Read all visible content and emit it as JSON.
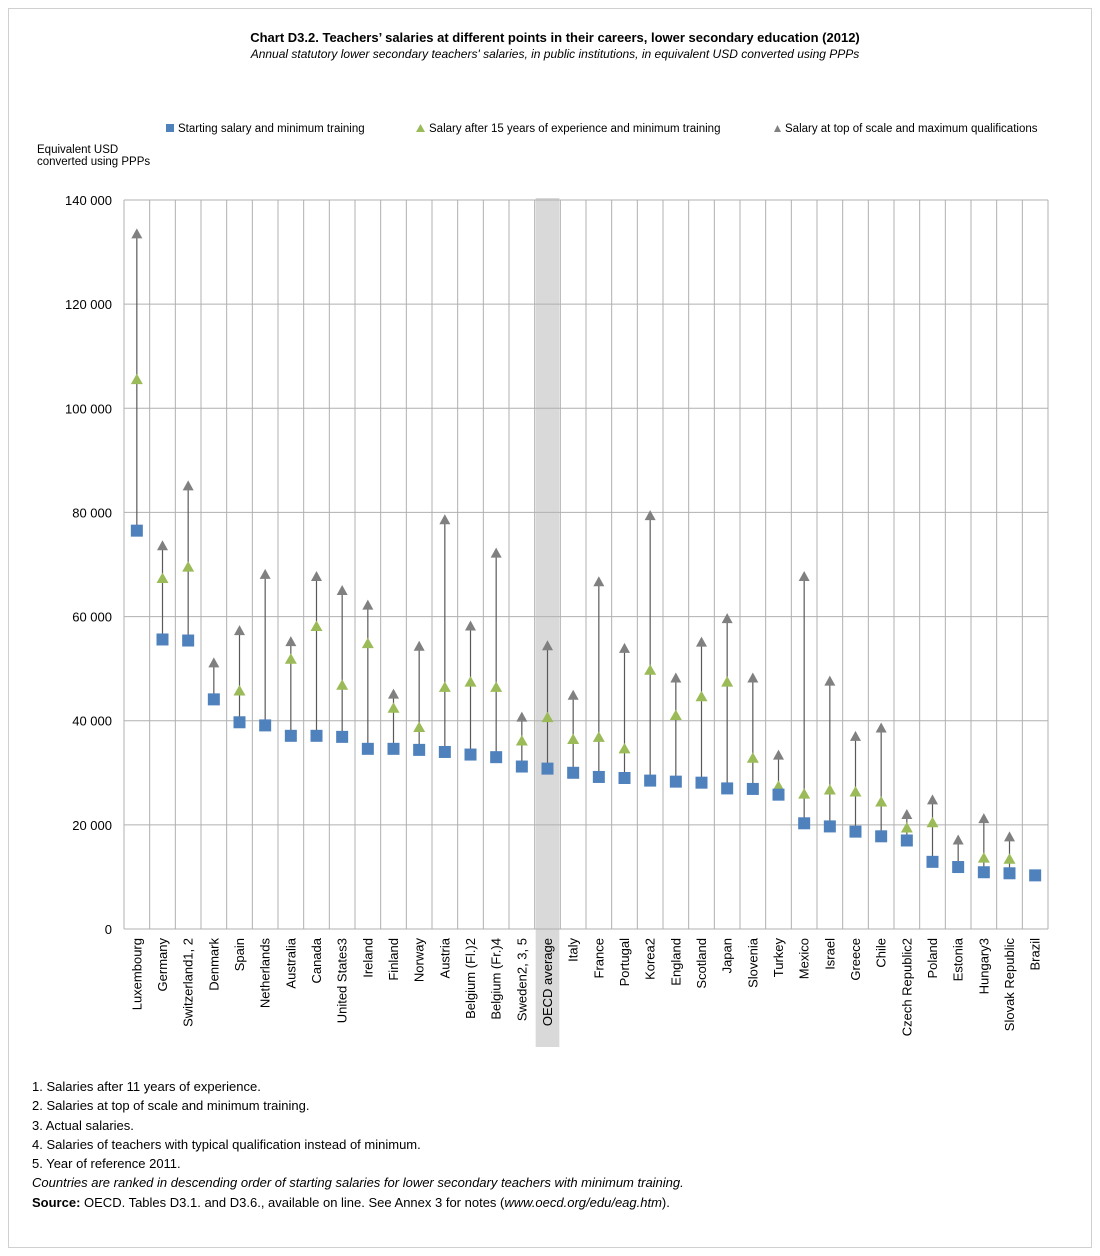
{
  "title": "Chart D3.2. Teachers’ salaries  at different points  in their careers, lower secondary  education (2012)",
  "subtitle": "Annual statutory lower secondary teachers' salaries, in public institutions, in equivalent USD converted using PPPs",
  "colors": {
    "starting": "#4f81bd",
    "after15": "#9bbb59",
    "top": "#808080",
    "highlight": "#d9d9d9",
    "grid": "#b0b0b0"
  },
  "legend": [
    {
      "key": "starting",
      "label": "Starting salary and minimum training",
      "marker": "square"
    },
    {
      "key": "after15",
      "label": "Salary after 15 years of experience and minimum training",
      "marker": "triangle"
    },
    {
      "key": "top",
      "label": "Salary at top of scale and maximum qualifications",
      "marker": "triangle-small"
    }
  ],
  "chart_data": {
    "type": "scatter",
    "ylabel": "Equivalent USD converted using PPPs",
    "ylim": [
      0,
      140000
    ],
    "yticks": [
      0,
      20000,
      40000,
      60000,
      80000,
      100000,
      120000,
      140000
    ],
    "ytick_labels": [
      "0",
      "20 000",
      "40 000",
      "60 000",
      "80 000",
      "100 000",
      "120 000",
      "140 000"
    ],
    "grid": true,
    "legend_position": "top",
    "highlight_category": "OECD average",
    "categories": [
      "Luxembourg",
      "Germany",
      "Switzerland1, 2",
      "Denmark",
      "Spain",
      "Netherlands",
      "Australia",
      "Canada",
      "United States3",
      "Ireland",
      "Finland",
      "Norway",
      "Austria",
      "Belgium (Fl.)2",
      "Belgium (Fr.)4",
      "Sweden2, 3, 5",
      "OECD average",
      "Italy",
      "France",
      "Portugal",
      "Korea2",
      "England",
      "Scotland",
      "Japan",
      "Slovenia",
      "Turkey",
      "Mexico",
      "Israel",
      "Greece",
      "Chile",
      "Czech Republic2",
      "Poland",
      "Estonia",
      "Hungary3",
      "Slovak Republic",
      "Brazil"
    ],
    "series": [
      {
        "name": "Starting salary and minimum training",
        "key": "starting",
        "values": [
          76500,
          55600,
          55400,
          44100,
          39700,
          39100,
          37100,
          37100,
          36900,
          34600,
          34600,
          34400,
          34000,
          33500,
          33000,
          31200,
          30800,
          30000,
          29200,
          29000,
          28500,
          28300,
          28100,
          27000,
          26900,
          25800,
          20300,
          19700,
          18700,
          17800,
          17000,
          12900,
          11900,
          10900,
          10700,
          10300
        ]
      },
      {
        "name": "Salary after 15 years of experience and minimum training",
        "key": "after15",
        "values": [
          105500,
          67300,
          69500,
          null,
          45700,
          null,
          51800,
          58100,
          46800,
          54800,
          42400,
          38700,
          46400,
          47400,
          46400,
          36100,
          40600,
          36400,
          36800,
          34600,
          49700,
          41000,
          44600,
          47400,
          32800,
          27400,
          25900,
          26700,
          26300,
          24400,
          19400,
          20400,
          11900,
          13600,
          13400,
          null
        ]
      },
      {
        "name": "Salary at top of scale and maximum qualifications",
        "key": "top",
        "values": [
          133400,
          73500,
          85000,
          51000,
          57200,
          68000,
          55100,
          67600,
          64900,
          62100,
          45000,
          54200,
          78500,
          58100,
          72100,
          40600,
          54300,
          44800,
          66600,
          53800,
          79300,
          48100,
          55000,
          59500,
          48100,
          33300,
          67600,
          47500,
          36900,
          38500,
          21900,
          24700,
          17000,
          21100,
          17600,
          null
        ]
      }
    ]
  },
  "notes": [
    "1. Salaries after 11 years of experience.",
    "2. Salaries at top of scale and minimum training.",
    "3. Actual salaries.",
    "4. Salaries of teachers with typical qualification instead of minimum.",
    "5. Year of reference 2011."
  ],
  "ranking_note": "Countries are ranked in descending order of starting salaries for lower secondary teachers with minimum training.",
  "source": {
    "label": "Source:",
    "text_before": " OECD. Tables D3.1. and D3.6., available on line. See Annex 3 for notes (",
    "url": "www.oecd.org/edu/eag.htm",
    "text_after": ")."
  }
}
